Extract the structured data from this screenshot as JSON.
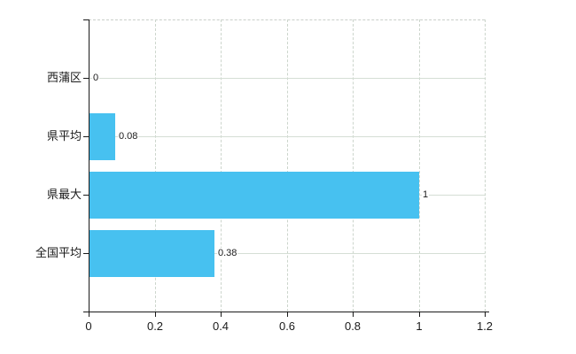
{
  "chart_data": {
    "type": "bar",
    "orientation": "horizontal",
    "title": "",
    "xlabel": "",
    "ylabel": "",
    "categories": [
      "西蒲区",
      "県平均",
      "県最大",
      "全国平均"
    ],
    "values": [
      0,
      0.08,
      1,
      0.38
    ],
    "value_labels": [
      "0",
      "0.08",
      "1",
      "0.38"
    ],
    "xlim": [
      0,
      1.2
    ],
    "x_ticks": [
      0,
      0.2,
      0.4,
      0.6,
      0.8,
      1,
      1.2
    ],
    "x_tick_labels": [
      "0",
      "0.2",
      "0.4",
      "0.6",
      "0.8",
      "1",
      "1.2"
    ],
    "grid": true,
    "legend": false,
    "bar_color": "#47C1F0",
    "h_gridline_color": "#d5ded5",
    "v_gridline_color": "#ccd5cc",
    "border_dash_color": "#c9cfc9",
    "axis_color": "#1a1a1a",
    "text_color": "#1a1a1a",
    "background_color": "#ffffff"
  }
}
